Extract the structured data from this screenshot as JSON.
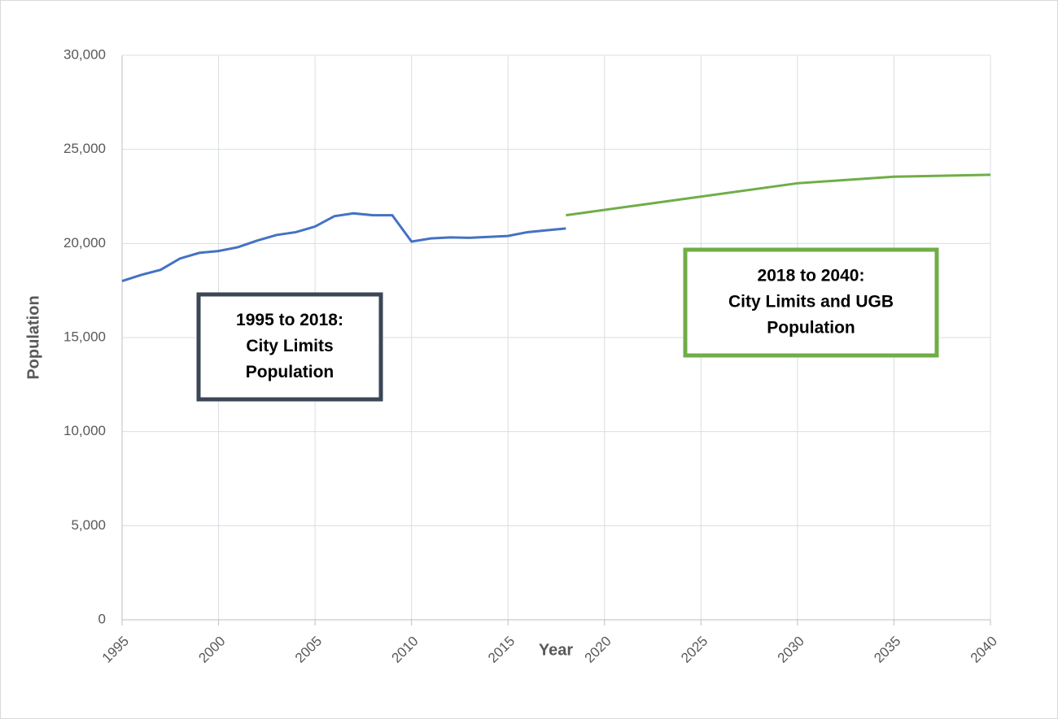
{
  "chart_data": {
    "type": "line",
    "xlabel": "Year",
    "ylabel": "Population",
    "xlim": [
      1995,
      2040
    ],
    "xticks": [
      1995,
      2000,
      2005,
      2010,
      2015,
      2020,
      2025,
      2030,
      2035,
      2040
    ],
    "ylim": [
      0,
      30000
    ],
    "yticks": [
      0,
      {
        "value": 5000,
        "label": "5,000"
      },
      {
        "value": 10000,
        "label": "10,000"
      },
      {
        "value": 15000,
        "label": "15,000"
      },
      {
        "value": 20000,
        "label": "20,000"
      },
      {
        "value": 25000,
        "label": "25,000"
      },
      {
        "value": 30000,
        "label": "30,000"
      }
    ],
    "grid": true,
    "series": [
      {
        "color": "#4472c4",
        "x": [
          1995,
          1996,
          1997,
          1998,
          1999,
          2000,
          2001,
          2002,
          2003,
          2004,
          2005,
          2006,
          2007,
          2008,
          2009,
          2010,
          2011,
          2012,
          2013,
          2014,
          2015,
          2016,
          2017,
          2018
        ],
        "values": [
          18000,
          18330,
          18600,
          19200,
          19500,
          19600,
          19800,
          20150,
          20450,
          20600,
          20900,
          21450,
          21600,
          21500,
          21500,
          20100,
          20270,
          20320,
          20300,
          20350,
          20400,
          20600,
          20700,
          20800
        ]
      },
      {
        "color": "#70ad47",
        "x": [
          2018,
          2030,
          2035,
          2040
        ],
        "values": [
          21500,
          23200,
          23550,
          23650
        ]
      }
    ],
    "annotations": [
      {
        "lines": [
          "1995 to 2018:",
          "City Limits",
          "Population"
        ],
        "color": "#3b4656"
      },
      {
        "lines": [
          "2018 to 2040:",
          "City Limits and UGB",
          "Population"
        ],
        "color": "#70ad47"
      }
    ]
  }
}
